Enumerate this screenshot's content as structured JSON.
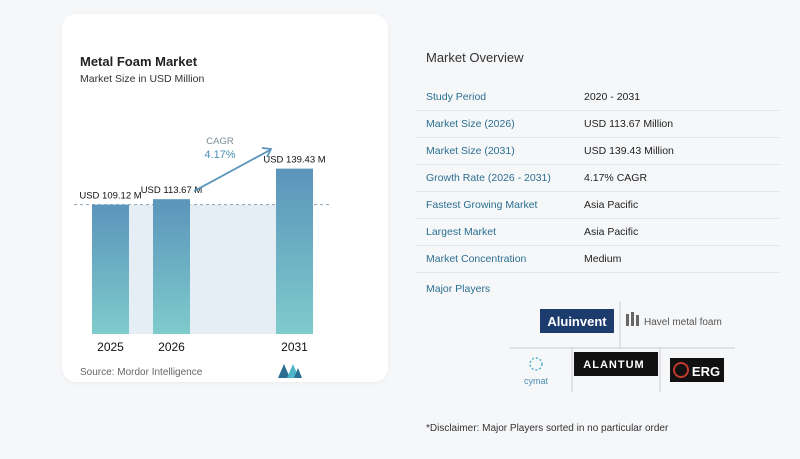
{
  "chart_data": {
    "type": "bar",
    "title": "Metal Foam Market",
    "subtitle": "Market Size in USD Million",
    "categories": [
      "2025",
      "2026",
      "2031"
    ],
    "values": [
      109.12,
      113.67,
      139.43
    ],
    "value_labels": [
      "USD 109.12 M",
      "USD 113.67 M",
      "USD 139.43 M"
    ],
    "cagr_label": "CAGR",
    "cagr_value": "4.17%",
    "ylim": [
      0,
      145
    ],
    "grid": false,
    "bar_color_top": "#5b95bb",
    "bar_color_bottom": "#7ecbcc"
  },
  "source": "Source:  Mordor Intelligence",
  "overview": {
    "title": "Market Overview",
    "rows": [
      {
        "key": "Study Period",
        "value": "2020 - 2031"
      },
      {
        "key": "Market Size (2026)",
        "value": "USD 113.67 Million"
      },
      {
        "key": "Market Size (2031)",
        "value": "USD 139.43 Million"
      },
      {
        "key": "Growth Rate (2026 - 2031)",
        "value": "4.17% CAGR"
      },
      {
        "key": "Fastest Growing Market",
        "value": "Asia Pacific"
      },
      {
        "key": "Largest Market",
        "value": "Asia Pacific"
      },
      {
        "key": "Market Concentration",
        "value": "Medium"
      }
    ],
    "players_label": "Major Players",
    "players": [
      "Aluinvent",
      "Havel metal foam",
      "cymat",
      "ALANTUM",
      "ERG"
    ]
  },
  "disclaimer": "*Disclaimer: Major Players sorted in no particular order",
  "colors": {
    "accent": "#2b6f92",
    "card": "#ffffff",
    "background": "#f6f7f9"
  }
}
